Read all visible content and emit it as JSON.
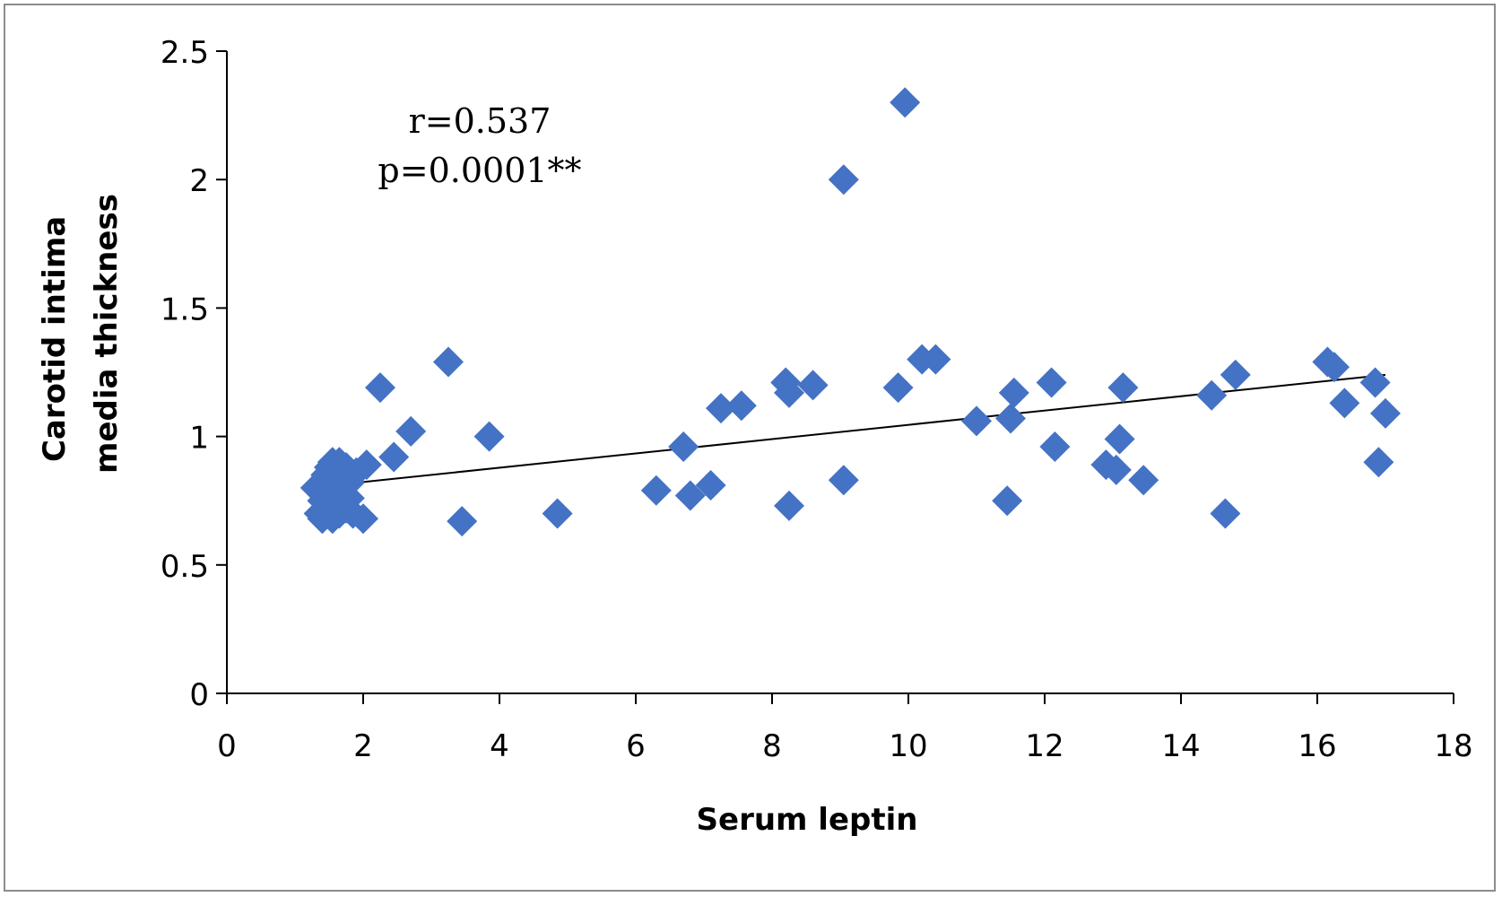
{
  "chart_data": {
    "type": "scatter",
    "xlabel": "Serum leptin",
    "ylabel_lines": [
      "Carotid intima",
      "media thickness"
    ],
    "xlim": [
      0,
      18
    ],
    "ylim": [
      0,
      2.5
    ],
    "x_ticks": [
      "0",
      "2",
      "4",
      "6",
      "8",
      "10",
      "12",
      "14",
      "16",
      "18"
    ],
    "y_ticks": [
      "0",
      "0.5",
      "1",
      "1.5",
      "2",
      "2.5"
    ],
    "grid": false,
    "legend": "none",
    "marker": "diamond",
    "marker_color": "#4472C4",
    "trendline": {
      "from": [
        1.9,
        0.82
      ],
      "to": [
        17.0,
        1.24
      ],
      "color": "#000000"
    },
    "annotations": [
      "r=0.537",
      "p=0.0001**"
    ],
    "points": [
      [
        1.3,
        0.8
      ],
      [
        1.35,
        0.7
      ],
      [
        1.4,
        0.68
      ],
      [
        1.4,
        0.75
      ],
      [
        1.45,
        0.85
      ],
      [
        1.45,
        0.78
      ],
      [
        1.5,
        0.88
      ],
      [
        1.5,
        0.72
      ],
      [
        1.5,
        0.82
      ],
      [
        1.55,
        0.9
      ],
      [
        1.55,
        0.68
      ],
      [
        1.6,
        0.8
      ],
      [
        1.6,
        0.86
      ],
      [
        1.6,
        0.74
      ],
      [
        1.65,
        0.7
      ],
      [
        1.65,
        0.9
      ],
      [
        1.7,
        0.78
      ],
      [
        1.7,
        0.84
      ],
      [
        1.75,
        0.72
      ],
      [
        1.75,
        0.88
      ],
      [
        1.8,
        0.76
      ],
      [
        1.8,
        0.82
      ],
      [
        1.85,
        0.7
      ],
      [
        1.9,
        0.86
      ],
      [
        2.0,
        0.68
      ],
      [
        2.05,
        0.89
      ],
      [
        2.25,
        1.19
      ],
      [
        2.45,
        0.92
      ],
      [
        2.7,
        1.02
      ],
      [
        3.25,
        1.29
      ],
      [
        3.45,
        0.67
      ],
      [
        3.85,
        1.0
      ],
      [
        4.85,
        0.7
      ],
      [
        6.3,
        0.79
      ],
      [
        6.7,
        0.96
      ],
      [
        6.8,
        0.77
      ],
      [
        7.1,
        0.81
      ],
      [
        7.25,
        1.11
      ],
      [
        7.55,
        1.12
      ],
      [
        8.2,
        1.21
      ],
      [
        8.25,
        1.17
      ],
      [
        8.25,
        0.73
      ],
      [
        8.6,
        1.2
      ],
      [
        9.05,
        2.0
      ],
      [
        9.05,
        0.83
      ],
      [
        9.85,
        1.19
      ],
      [
        9.95,
        2.3
      ],
      [
        10.2,
        1.3
      ],
      [
        10.4,
        1.3
      ],
      [
        11.0,
        1.06
      ],
      [
        11.45,
        0.75
      ],
      [
        11.5,
        1.07
      ],
      [
        11.55,
        1.17
      ],
      [
        12.1,
        1.21
      ],
      [
        12.15,
        0.96
      ],
      [
        12.9,
        0.89
      ],
      [
        13.05,
        0.87
      ],
      [
        13.1,
        0.99
      ],
      [
        13.15,
        1.19
      ],
      [
        13.45,
        0.83
      ],
      [
        14.45,
        1.16
      ],
      [
        14.65,
        0.7
      ],
      [
        14.8,
        1.24
      ],
      [
        16.15,
        1.29
      ],
      [
        16.25,
        1.27
      ],
      [
        16.4,
        1.13
      ],
      [
        16.85,
        1.21
      ],
      [
        16.9,
        0.9
      ],
      [
        17.0,
        1.09
      ]
    ]
  }
}
